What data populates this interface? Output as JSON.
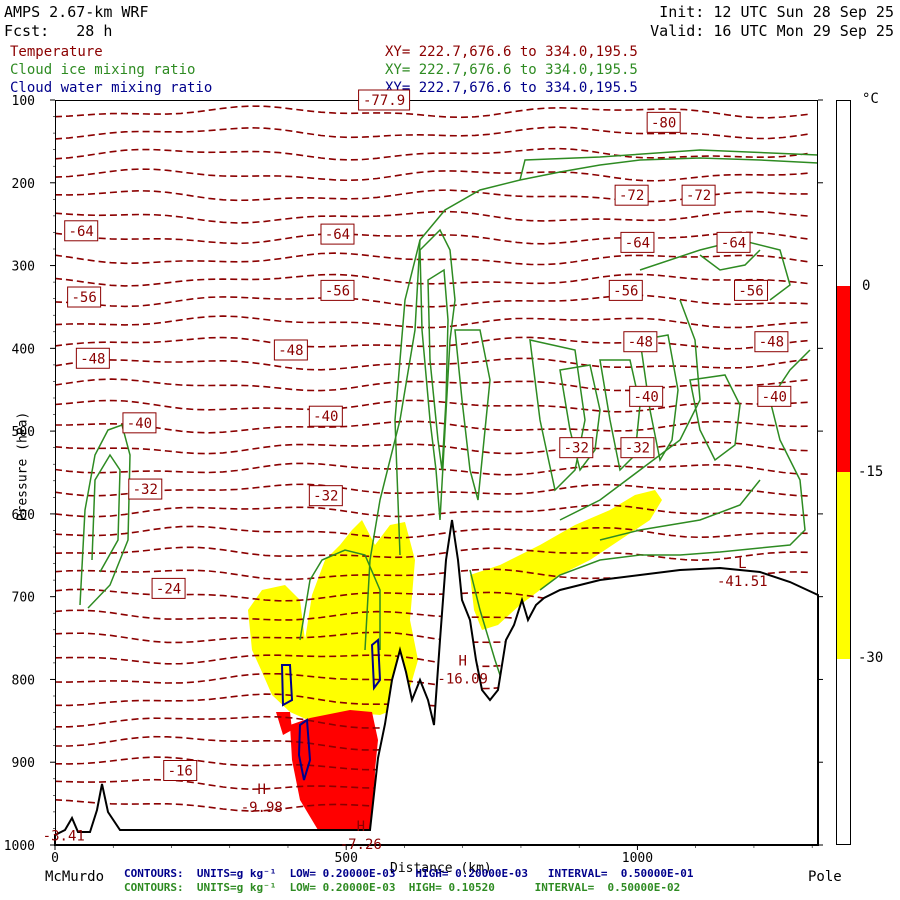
{
  "header": {
    "model": "AMPS 2.67-km WRF",
    "forecast": "Fcst:   28 h",
    "init": "Init: 12 UTC Sun 28 Sep 25",
    "valid": "Valid: 16 UTC Mon 29 Sep 25"
  },
  "legend": [
    {
      "label": "Temperature",
      "xy": "XY= 222.7,676.6 to 334.0,195.5",
      "color": "#8b0000"
    },
    {
      "label": "Cloud ice mixing ratio",
      "xy": "XY= 222.7,676.6 to 334.0,195.5",
      "color": "#2e8b22"
    },
    {
      "label": "Cloud water mixing ratio",
      "xy": "XY= 222.7,676.6 to 334.0,195.5",
      "color": "#00008b"
    }
  ],
  "footer": {
    "water_contours": "CONTOURS:  UNITS=g kg⁻¹  LOW= 0.20000E-03   HIGH= 0.20000E-03   INTERVAL=  0.50000E-01",
    "ice_contours": "CONTOURS:  UNITS=g kg⁻¹  LOW= 0.20000E-03  HIGH= 0.10520      INTERVAL=  0.50000E-02"
  },
  "colors": {
    "temperature": "#8b0000",
    "ice": "#2e8b22",
    "water": "#00008b",
    "terrain": "#000000",
    "shade_warm": "#ff0000",
    "shade_mid": "#ffff00"
  },
  "chart_data": {
    "type": "heatmap",
    "ylabel": "Pressure (hPa)",
    "xlabel": "Distance (km)",
    "x_ticks": [
      0,
      500,
      1000
    ],
    "x_endpoints": [
      "McMurdo",
      "Pole"
    ],
    "y_ticks": [
      100,
      200,
      300,
      400,
      500,
      600,
      700,
      800,
      900,
      1000
    ],
    "xlim": [
      0,
      1310
    ],
    "ylim": [
      1000,
      100
    ],
    "colorbar": {
      "unit": "°C",
      "ticks": [
        0,
        -15,
        -30
      ],
      "bands": [
        {
          "from": 0,
          "to": -15,
          "color": "#ff0000"
        },
        {
          "from": -15,
          "to": -30,
          "color": "#ffff00"
        }
      ]
    },
    "temperature_labels": [
      {
        "text": "-80",
        "x": 1045,
        "p": 127
      },
      {
        "text": "-77.9",
        "x": 565,
        "p": 100
      },
      {
        "text": "-72",
        "x": 990,
        "p": 215
      },
      {
        "text": "-72",
        "x": 1105,
        "p": 215
      },
      {
        "text": "-64",
        "x": 45,
        "p": 258
      },
      {
        "text": "-64",
        "x": 485,
        "p": 262
      },
      {
        "text": "-64",
        "x": 1000,
        "p": 272
      },
      {
        "text": "-64",
        "x": 1165,
        "p": 272
      },
      {
        "text": "-56",
        "x": 50,
        "p": 338
      },
      {
        "text": "-56",
        "x": 485,
        "p": 330
      },
      {
        "text": "-56",
        "x": 980,
        "p": 330
      },
      {
        "text": "-56",
        "x": 1195,
        "p": 330
      },
      {
        "text": "-48",
        "x": 65,
        "p": 412
      },
      {
        "text": "-48",
        "x": 405,
        "p": 402
      },
      {
        "text": "-48",
        "x": 1005,
        "p": 392
      },
      {
        "text": "-48",
        "x": 1230,
        "p": 392
      },
      {
        "text": "-40",
        "x": 145,
        "p": 490
      },
      {
        "text": "-40",
        "x": 465,
        "p": 482
      },
      {
        "text": "-40",
        "x": 1015,
        "p": 458
      },
      {
        "text": "-40",
        "x": 1235,
        "p": 458
      },
      {
        "text": "-32",
        "x": 155,
        "p": 570
      },
      {
        "text": "-32",
        "x": 465,
        "p": 578
      },
      {
        "text": "-32",
        "x": 895,
        "p": 520
      },
      {
        "text": "-32",
        "x": 1000,
        "p": 520
      },
      {
        "text": "-24",
        "x": 195,
        "p": 690
      },
      {
        "text": "-16",
        "x": 215,
        "p": 910
      }
    ],
    "extrema": [
      {
        "type": "H",
        "value": "-9.98",
        "x": 355,
        "p": 955
      },
      {
        "type": "H",
        "value": "-7.26",
        "x": 525,
        "p": 1000
      },
      {
        "type": "H",
        "value": "-16.09",
        "x": 700,
        "p": 800
      },
      {
        "type": "L",
        "value": "-41.51",
        "x": 1180,
        "p": 682
      },
      {
        "type": "",
        "value": "-3.41",
        "x": 15,
        "p": 990
      }
    ]
  }
}
